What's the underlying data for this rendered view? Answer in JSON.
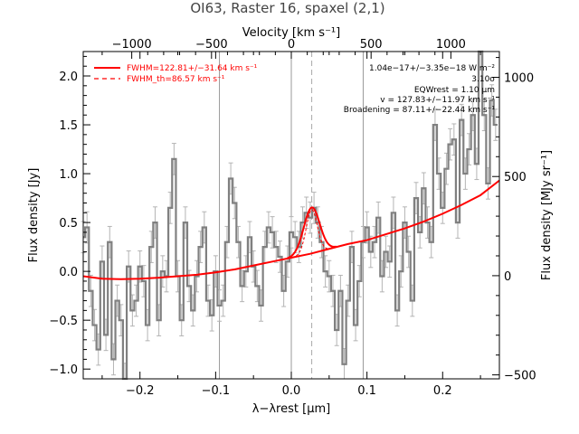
{
  "title": "OI63, Raster 16, spaxel (2,1)",
  "chart_data": {
    "type": "line",
    "title": "OI63, Raster 16, spaxel (2,1)",
    "xlabel": "λ−λrest [μm]",
    "ylabel": "Flux density [Jy]",
    "top_axis_label": "Velocity [km s⁻¹]",
    "right_axis_label": "Flux density [MJy sr⁻¹]",
    "xlim": [
      -0.275,
      0.275
    ],
    "ylim": [
      -1.1,
      2.25
    ],
    "right_ylim": [
      -520,
      1130
    ],
    "top_xlim": [
      -1304,
      1304
    ],
    "x_ticks": [
      -0.2,
      -0.1,
      0.0,
      0.1,
      0.2
    ],
    "x_tick_labels": [
      "−0.2",
      "−0.1",
      "0.0",
      "0.1",
      "0.2"
    ],
    "y_ticks": [
      -1.0,
      -0.5,
      0.0,
      0.5,
      1.0,
      1.5,
      2.0
    ],
    "y_tick_labels": [
      "−1.0",
      "−0.5",
      "0.0",
      "0.5",
      "1.0",
      "1.5",
      "2.0"
    ],
    "top_ticks": [
      -1000,
      -500,
      0,
      500,
      1000
    ],
    "top_tick_labels": [
      "−1000",
      "−500",
      "0",
      "500",
      "1000"
    ],
    "right_ticks": [
      -500,
      0,
      500,
      1000
    ],
    "right_tick_labels": [
      "−500",
      "0",
      "500",
      "1000"
    ],
    "vertical_lines": [
      -0.095,
      0.0,
      0.095
    ],
    "line_center": 0.027,
    "spectrum": {
      "x": [
        -0.275,
        -0.27,
        -0.265,
        -0.26,
        -0.255,
        -0.25,
        -0.245,
        -0.24,
        -0.235,
        -0.23,
        -0.225,
        -0.22,
        -0.215,
        -0.21,
        -0.205,
        -0.2,
        -0.195,
        -0.19,
        -0.185,
        -0.18,
        -0.175,
        -0.17,
        -0.165,
        -0.16,
        -0.155,
        -0.15,
        -0.145,
        -0.14,
        -0.135,
        -0.13,
        -0.125,
        -0.12,
        -0.115,
        -0.11,
        -0.105,
        -0.1,
        -0.095,
        -0.09,
        -0.085,
        -0.08,
        -0.075,
        -0.07,
        -0.065,
        -0.06,
        -0.055,
        -0.05,
        -0.045,
        -0.04,
        -0.035,
        -0.03,
        -0.025,
        -0.02,
        -0.015,
        -0.01,
        -0.005,
        0.0,
        0.005,
        0.01,
        0.015,
        0.02,
        0.025,
        0.03,
        0.035,
        0.04,
        0.045,
        0.05,
        0.055,
        0.06,
        0.065,
        0.07,
        0.075,
        0.08,
        0.085,
        0.09,
        0.095,
        0.1,
        0.105,
        0.11,
        0.115,
        0.12,
        0.125,
        0.13,
        0.135,
        0.14,
        0.145,
        0.15,
        0.155,
        0.16,
        0.165,
        0.17,
        0.175,
        0.18,
        0.185,
        0.19,
        0.195,
        0.2,
        0.205,
        0.21,
        0.215,
        0.22,
        0.225,
        0.23,
        0.235,
        0.24,
        0.245,
        0.25,
        0.255,
        0.26,
        0.265,
        0.27
      ],
      "y": [
        0.35,
        0.45,
        -0.2,
        -0.55,
        -0.8,
        0.1,
        -0.65,
        0.3,
        -0.9,
        -0.3,
        -0.5,
        -1.1,
        0.05,
        -0.4,
        -0.3,
        0.05,
        -0.1,
        -0.55,
        0.25,
        0.5,
        -0.5,
        0.0,
        -0.05,
        0.65,
        1.15,
        -0.05,
        -0.5,
        0.5,
        -0.15,
        -0.4,
        -0.05,
        0.25,
        0.45,
        -0.3,
        -0.45,
        0.0,
        -0.35,
        -0.3,
        0.3,
        0.95,
        0.7,
        0.3,
        -0.15,
        0.0,
        0.35,
        0.05,
        -0.15,
        -0.35,
        0.25,
        0.45,
        0.4,
        0.25,
        0.15,
        -0.2,
        0.1,
        0.4,
        0.35,
        0.25,
        0.5,
        0.6,
        0.55,
        0.65,
        0.5,
        0.3,
        0.0,
        -0.05,
        -0.2,
        -0.6,
        -0.2,
        -0.95,
        -0.3,
        0.25,
        -0.55,
        -0.1,
        0.3,
        0.45,
        0.2,
        0.3,
        0.55,
        -0.05,
        0.2,
        0.1,
        0.6,
        -0.4,
        0.0,
        0.5,
        0.2,
        -0.3,
        0.75,
        0.4,
        0.85,
        0.5,
        0.3,
        1.5,
        1.0,
        0.65,
        1.05,
        1.3,
        1.35,
        0.5,
        1.55,
        1.0,
        1.25,
        1.6,
        1.1,
        2.25,
        1.6,
        0.9,
        1.75,
        1.5
      ],
      "error": 0.16
    },
    "baseline": {
      "x": [
        -0.275,
        -0.25,
        -0.225,
        -0.2,
        -0.175,
        -0.15,
        -0.125,
        -0.1,
        -0.075,
        -0.05,
        -0.025,
        0.0,
        0.025,
        0.05,
        0.075,
        0.1,
        0.125,
        0.15,
        0.175,
        0.2,
        0.225,
        0.25,
        0.275
      ],
      "y": [
        -0.05,
        -0.075,
        -0.08,
        -0.075,
        -0.065,
        -0.05,
        -0.035,
        -0.01,
        0.02,
        0.06,
        0.1,
        0.14,
        0.18,
        0.23,
        0.28,
        0.32,
        0.38,
        0.44,
        0.51,
        0.59,
        0.68,
        0.78,
        0.93
      ]
    },
    "gaussian_fit": {
      "center": 0.027,
      "peak_above_baseline": 0.47,
      "sigma": 0.0105,
      "x_range": [
        -0.005,
        0.06
      ]
    },
    "series": [
      {
        "name": "FWHM=122.81+/−31.64 km s⁻¹",
        "style": "solid",
        "color": "#ff0000"
      },
      {
        "name": "FWHM_th=86.57 km s⁻¹",
        "style": "dashed",
        "color": "#ff0000"
      }
    ],
    "annotations": [
      "1.04e−17+/−3.35e−18 W m⁻²",
      "3.10σ",
      "EQWrest = 1.10 μm",
      "v = 127.83+/−11.97 km s⁻¹",
      "Broadening = 87.11+/−22.44 km s⁻¹"
    ],
    "colors": {
      "spectrum": "#808080",
      "error_bars": "#b4b4b4",
      "fit": "#ff0000",
      "vertical_lines": "#999999",
      "center_line": "#aaaaaa"
    },
    "grid": false,
    "legend_position": "top-left"
  }
}
